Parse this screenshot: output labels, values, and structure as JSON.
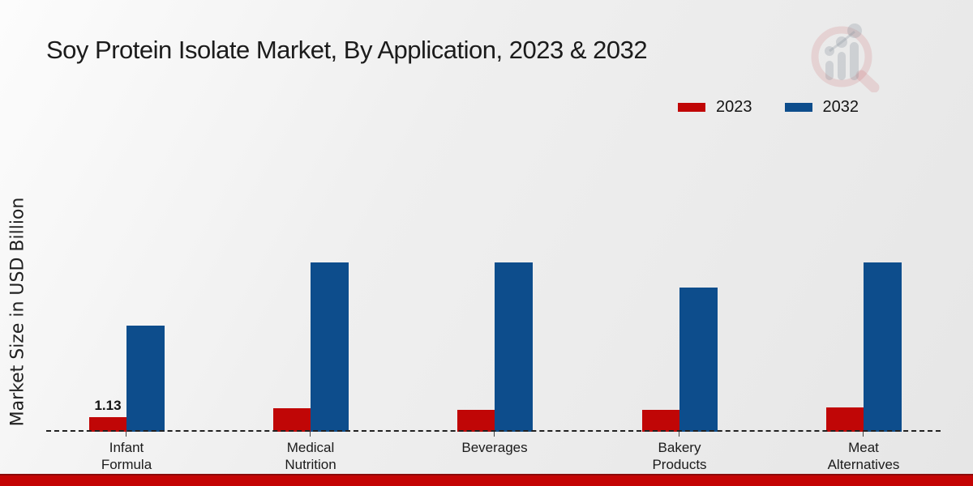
{
  "page": {
    "title": "Soy Protein Isolate Market, By Application, 2023 & 2032"
  },
  "legend": {
    "items": [
      {
        "label": "2023",
        "color": "#c00606"
      },
      {
        "label": "2032",
        "color": "#0d4d8c"
      }
    ]
  },
  "chart_data": {
    "type": "bar",
    "title": "Soy Protein Isolate Market, By Application, 2023 & 2032",
    "ylabel": "Market Size in USD Billion",
    "xlabel": "",
    "categories": [
      "Infant Formula",
      "Medical Nutrition",
      "Beverages",
      "Bakery Products",
      "Meat Alternatives"
    ],
    "category_labels": [
      "Infant\nFormula",
      "Medical\nNutrition",
      "Beverages",
      "Bakery\nProducts",
      "Meat\nAlternatives"
    ],
    "series": [
      {
        "name": "2023",
        "color": "#c00606",
        "values": [
          1.13,
          1.8,
          1.7,
          1.7,
          1.9
        ]
      },
      {
        "name": "2032",
        "color": "#0d4d8c",
        "values": [
          8.2,
          13.1,
          13.1,
          11.2,
          13.1
        ]
      }
    ],
    "bar_label": {
      "category_index": 0,
      "series": "2023",
      "text": "1.13"
    },
    "ylim": [
      0,
      13.5
    ],
    "grid": false,
    "baseline_style": "dashed",
    "legend_position": "top-right"
  },
  "branding": {
    "logo": "magnifier-bar-chart-watermark",
    "footer_bar_color": "#c40404"
  }
}
